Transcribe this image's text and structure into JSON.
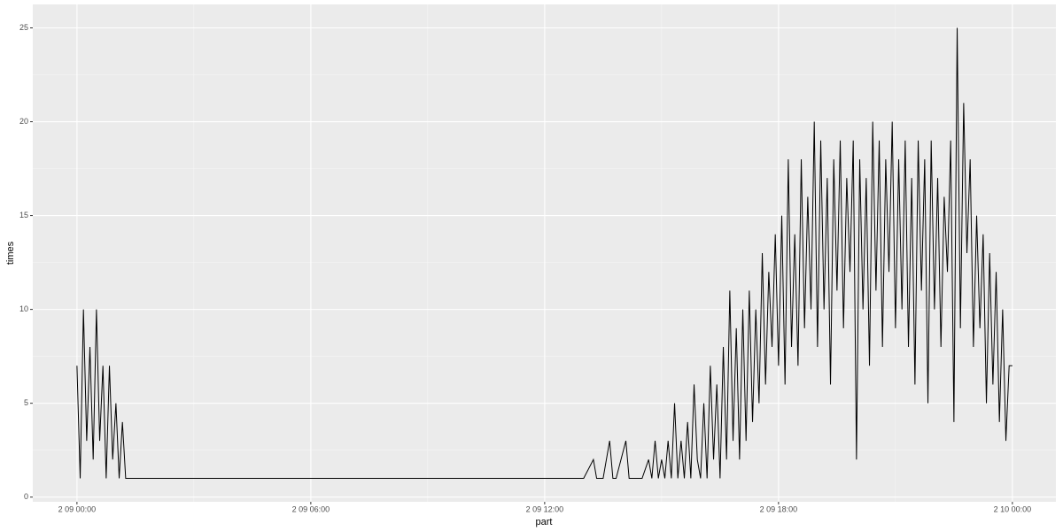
{
  "chart_data": {
    "type": "line",
    "x_label": "part",
    "y_label": "times",
    "x": [
      "2 09 00:00",
      "2 09 00:05",
      "2 09 00:10",
      "2 09 00:15",
      "2 09 00:20",
      "2 09 00:25",
      "2 09 00:30",
      "2 09 00:35",
      "2 09 00:40",
      "2 09 00:45",
      "2 09 00:50",
      "2 09 00:55",
      "2 09 01:00",
      "2 09 01:05",
      "2 09 01:10",
      "2 09 01:15",
      "2 09 13:00",
      "2 09 13:15",
      "2 09 13:20",
      "2 09 13:30",
      "2 09 13:40",
      "2 09 13:45",
      "2 09 13:50",
      "2 09 14:05",
      "2 09 14:10",
      "2 09 14:30",
      "2 09 14:40",
      "2 09 14:45",
      "2 09 14:50",
      "2 09 14:55",
      "2 09 15:00",
      "2 09 15:05",
      "2 09 15:10",
      "2 09 15:15",
      "2 09 15:20",
      "2 09 15:25",
      "2 09 15:30",
      "2 09 15:35",
      "2 09 15:40",
      "2 09 15:45",
      "2 09 15:50",
      "2 09 15:55",
      "2 09 16:00",
      "2 09 16:05",
      "2 09 16:10",
      "2 09 16:15",
      "2 09 16:20",
      "2 09 16:25",
      "2 09 16:30",
      "2 09 16:35",
      "2 09 16:40",
      "2 09 16:45",
      "2 09 16:50",
      "2 09 16:55",
      "2 09 17:00",
      "2 09 17:05",
      "2 09 17:10",
      "2 09 17:15",
      "2 09 17:20",
      "2 09 17:25",
      "2 09 17:30",
      "2 09 17:35",
      "2 09 17:40",
      "2 09 17:45",
      "2 09 17:50",
      "2 09 17:55",
      "2 09 18:00",
      "2 09 18:05",
      "2 09 18:10",
      "2 09 18:15",
      "2 09 18:20",
      "2 09 18:25",
      "2 09 18:30",
      "2 09 18:35",
      "2 09 18:40",
      "2 09 18:45",
      "2 09 18:50",
      "2 09 18:55",
      "2 09 19:00",
      "2 09 19:05",
      "2 09 19:10",
      "2 09 19:15",
      "2 09 19:20",
      "2 09 19:25",
      "2 09 19:30",
      "2 09 19:35",
      "2 09 19:40",
      "2 09 19:45",
      "2 09 19:50",
      "2 09 19:55",
      "2 09 20:00",
      "2 09 20:05",
      "2 09 20:10",
      "2 09 20:15",
      "2 09 20:20",
      "2 09 20:25",
      "2 09 20:30",
      "2 09 20:35",
      "2 09 20:40",
      "2 09 20:45",
      "2 09 20:50",
      "2 09 20:55",
      "2 09 21:00",
      "2 09 21:05",
      "2 09 21:10",
      "2 09 21:15",
      "2 09 21:20",
      "2 09 21:25",
      "2 09 21:30",
      "2 09 21:35",
      "2 09 21:40",
      "2 09 21:45",
      "2 09 21:50",
      "2 09 21:55",
      "2 09 22:00",
      "2 09 22:05",
      "2 09 22:10",
      "2 09 22:15",
      "2 09 22:20",
      "2 09 22:25",
      "2 09 22:30",
      "2 09 22:35",
      "2 09 22:40",
      "2 09 22:45",
      "2 09 22:50",
      "2 09 22:55",
      "2 09 23:00",
      "2 09 23:05",
      "2 09 23:10",
      "2 09 23:15",
      "2 09 23:20",
      "2 09 23:25",
      "2 09 23:30",
      "2 09 23:35",
      "2 09 23:40",
      "2 09 23:45",
      "2 09 23:50",
      "2 09 23:55",
      "2 10 00:00"
    ],
    "series": [
      {
        "color": "#000000",
        "values": [
          7,
          1,
          10,
          3,
          8,
          2,
          10,
          3,
          7,
          1,
          7,
          2,
          5,
          1,
          4,
          1,
          1,
          2,
          1,
          1,
          3,
          1,
          1,
          3,
          1,
          1,
          2,
          1,
          3,
          1,
          2,
          1,
          3,
          1,
          5,
          1,
          3,
          1,
          4,
          1,
          6,
          2,
          1,
          5,
          1,
          7,
          2,
          6,
          1,
          8,
          2,
          11,
          3,
          9,
          2,
          10,
          3,
          11,
          4,
          10,
          5,
          13,
          6,
          12,
          8,
          14,
          7,
          15,
          6,
          18,
          8,
          14,
          7,
          18,
          9,
          16,
          10,
          20,
          8,
          19,
          10,
          17,
          6,
          18,
          11,
          19,
          9,
          17,
          12,
          19,
          2,
          18,
          10,
          17,
          7,
          20,
          11,
          19,
          8,
          18,
          12,
          20,
          9,
          18,
          10,
          19,
          8,
          17,
          6,
          19,
          11,
          18,
          5,
          19,
          10,
          17,
          8,
          16,
          12,
          19,
          4,
          25,
          9,
          21,
          13,
          18,
          8,
          15,
          9,
          14,
          5,
          13,
          6,
          12,
          4,
          10,
          3,
          7,
          7
        ]
      }
    ],
    "xlim": [
      "2 08 22:52",
      "2 10 01:07"
    ],
    "xticks": [
      "2 09 00:00",
      "2 09 06:00",
      "2 09 12:00",
      "2 09 18:00",
      "2 10 00:00"
    ],
    "ylim": [
      -0.25,
      26.25
    ],
    "yticks": [
      0,
      5,
      10,
      15,
      20,
      25
    ],
    "grid": true
  }
}
